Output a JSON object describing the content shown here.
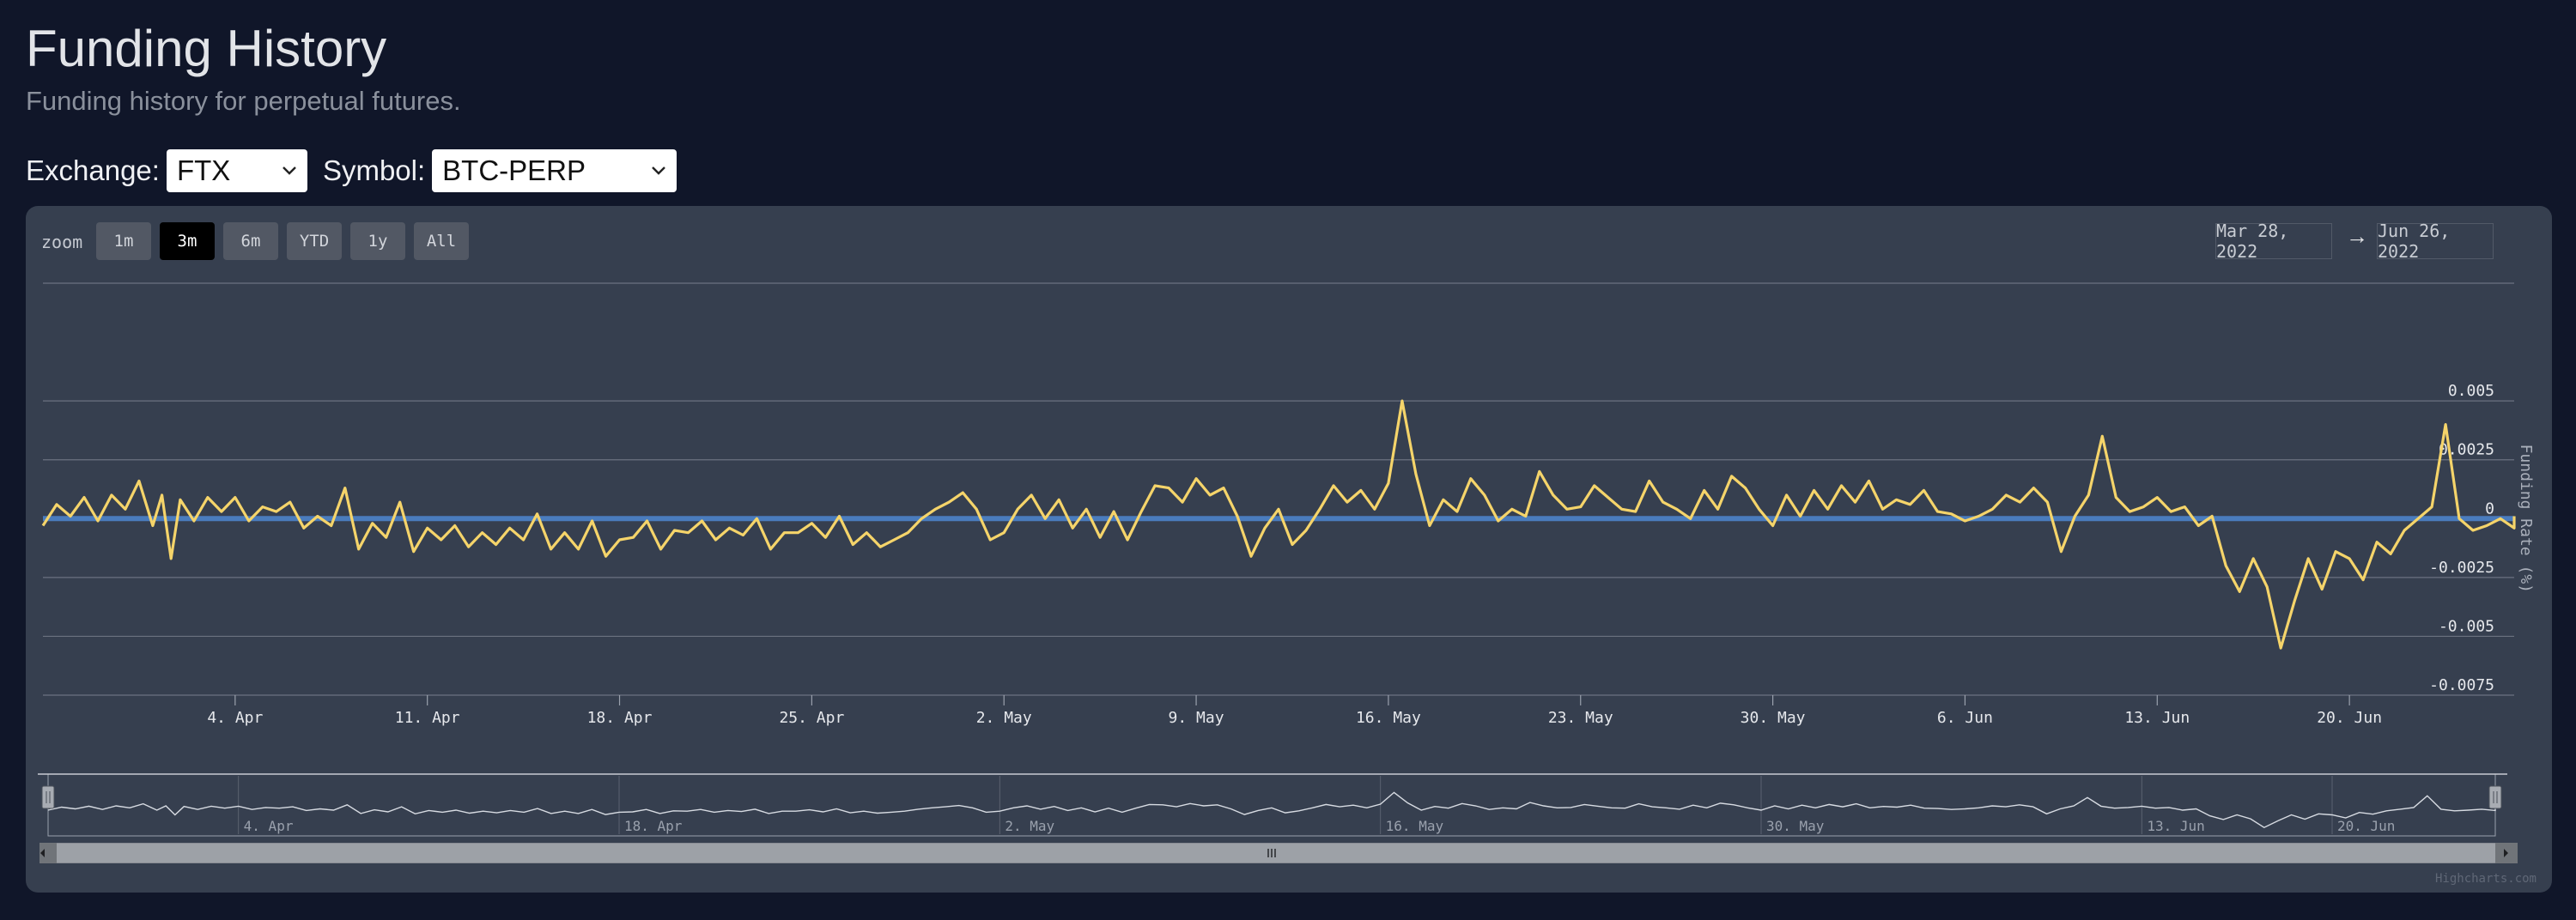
{
  "page": {
    "title": "Funding History",
    "subtitle": "Funding history for perpetual futures."
  },
  "filters": {
    "exchange_label": "Exchange:",
    "exchange_value": "FTX",
    "symbol_label": "Symbol:",
    "symbol_value": "BTC-PERP"
  },
  "range_selector": {
    "zoom_label": "zoom",
    "buttons": [
      "1m",
      "3m",
      "6m",
      "YTD",
      "1y",
      "All"
    ],
    "active": "3m",
    "from": "Mar 28, 2022",
    "to": "Jun 26, 2022",
    "arrow": "→"
  },
  "credits": "Highcharts.com",
  "colors": {
    "series": "#f5d46a",
    "zero_line": "#4a7cbd",
    "panel_bg": "#363f4f",
    "page_bg": "#101629"
  },
  "chart_data": {
    "type": "line",
    "title": "",
    "xlabel": "",
    "ylabel": "Funding Rate (%)",
    "x_start": "2022-03-28",
    "x_end": "2022-06-26",
    "xlim": [
      "2022-03-28",
      "2022-06-26"
    ],
    "ylim": [
      -0.0075,
      0.0075
    ],
    "y_ticks": [
      {
        "value": 0.005,
        "label": "0.005"
      },
      {
        "value": 0.0025,
        "label": "0.0025"
      },
      {
        "value": 0,
        "label": "0"
      },
      {
        "value": -0.0025,
        "label": "-0.0025"
      },
      {
        "value": -0.005,
        "label": "-0.005"
      },
      {
        "value": -0.0075,
        "label": "-0.0075"
      }
    ],
    "x_ticks": [
      {
        "date": "2022-04-04",
        "label": "4. Apr"
      },
      {
        "date": "2022-04-11",
        "label": "11. Apr"
      },
      {
        "date": "2022-04-18",
        "label": "18. Apr"
      },
      {
        "date": "2022-04-25",
        "label": "25. Apr"
      },
      {
        "date": "2022-05-02",
        "label": "2. May"
      },
      {
        "date": "2022-05-09",
        "label": "9. May"
      },
      {
        "date": "2022-05-16",
        "label": "16. May"
      },
      {
        "date": "2022-05-23",
        "label": "23. May"
      },
      {
        "date": "2022-05-30",
        "label": "30. May"
      },
      {
        "date": "2022-06-06",
        "label": "6. Jun"
      },
      {
        "date": "2022-06-13",
        "label": "13. Jun"
      },
      {
        "date": "2022-06-20",
        "label": "20. Jun"
      }
    ],
    "navigator_ticks": [
      {
        "date": "2022-04-04",
        "label": "4. Apr"
      },
      {
        "date": "2022-04-18",
        "label": "18. Apr"
      },
      {
        "date": "2022-05-02",
        "label": "2. May"
      },
      {
        "date": "2022-05-16",
        "label": "16. May"
      },
      {
        "date": "2022-05-30",
        "label": "30. May"
      },
      {
        "date": "2022-06-13",
        "label": "13. Jun"
      },
      {
        "date": "2022-06-20",
        "label": "20. Jun"
      }
    ],
    "grid": true,
    "legend": "none",
    "series": [
      {
        "points": [
          [
            "2022-03-28",
            -0.0003
          ],
          [
            "2022-03-28",
            0.0006
          ],
          [
            "2022-03-29",
            0.0001
          ],
          [
            "2022-03-29",
            0.0009
          ],
          [
            "2022-03-30",
            -0.0001
          ],
          [
            "2022-03-30",
            0.001
          ],
          [
            "2022-03-31",
            0.0004
          ],
          [
            "2022-03-31",
            0.0016
          ],
          [
            "2022-04-01",
            -0.0003
          ],
          [
            "2022-04-01",
            0.001
          ],
          [
            "2022-04-01",
            -0.0017
          ],
          [
            "2022-04-02",
            0.0008
          ],
          [
            "2022-04-02",
            -0.0001
          ],
          [
            "2022-04-03",
            0.0009
          ],
          [
            "2022-04-03",
            0.0003
          ],
          [
            "2022-04-04",
            0.0009
          ],
          [
            "2022-04-04",
            -0.0001
          ],
          [
            "2022-04-05",
            0.0005
          ],
          [
            "2022-04-05",
            0.0003
          ],
          [
            "2022-04-06",
            0.0007
          ],
          [
            "2022-04-06",
            -0.0004
          ],
          [
            "2022-04-07",
            0.0001
          ],
          [
            "2022-04-07",
            -0.0003
          ],
          [
            "2022-04-08",
            0.0013
          ],
          [
            "2022-04-08",
            -0.0013
          ],
          [
            "2022-04-09",
            -0.0002
          ],
          [
            "2022-04-09",
            -0.0008
          ],
          [
            "2022-04-10",
            0.0007
          ],
          [
            "2022-04-10",
            -0.0014
          ],
          [
            "2022-04-11",
            -0.0004
          ],
          [
            "2022-04-11",
            -0.0009
          ],
          [
            "2022-04-12",
            -0.0003
          ],
          [
            "2022-04-12",
            -0.0012
          ],
          [
            "2022-04-13",
            -0.0006
          ],
          [
            "2022-04-13",
            -0.0011
          ],
          [
            "2022-04-14",
            -0.0004
          ],
          [
            "2022-04-14",
            -0.0009
          ],
          [
            "2022-04-15",
            0.0002
          ],
          [
            "2022-04-15",
            -0.0013
          ],
          [
            "2022-04-16",
            -0.0006
          ],
          [
            "2022-04-16",
            -0.0013
          ],
          [
            "2022-04-17",
            -0.0001
          ],
          [
            "2022-04-17",
            -0.0016
          ],
          [
            "2022-04-18",
            -0.0009
          ],
          [
            "2022-04-18",
            -0.0008
          ],
          [
            "2022-04-19",
            -0.0001
          ],
          [
            "2022-04-19",
            -0.0013
          ],
          [
            "2022-04-20",
            -0.0005
          ],
          [
            "2022-04-20",
            -0.0006
          ],
          [
            "2022-04-21",
            -0.0001
          ],
          [
            "2022-04-21",
            -0.0009
          ],
          [
            "2022-04-22",
            -0.0004
          ],
          [
            "2022-04-22",
            -0.0007
          ],
          [
            "2022-04-23",
            0.0
          ],
          [
            "2022-04-23",
            -0.0013
          ],
          [
            "2022-04-24",
            -0.0006
          ],
          [
            "2022-04-24",
            -0.0006
          ],
          [
            "2022-04-25",
            -0.0002
          ],
          [
            "2022-04-25",
            -0.0008
          ],
          [
            "2022-04-26",
            0.0001
          ],
          [
            "2022-04-26",
            -0.0011
          ],
          [
            "2022-04-27",
            -0.0006
          ],
          [
            "2022-04-27",
            -0.0012
          ],
          [
            "2022-04-28",
            -0.0009
          ],
          [
            "2022-04-28",
            -0.0006
          ],
          [
            "2022-04-29",
            0.0
          ],
          [
            "2022-04-29",
            0.0004
          ],
          [
            "2022-04-30",
            0.0007
          ],
          [
            "2022-04-30",
            0.0011
          ],
          [
            "2022-05-01",
            0.0004
          ],
          [
            "2022-05-01",
            -0.0009
          ],
          [
            "2022-05-02",
            -0.0006
          ],
          [
            "2022-05-02",
            0.0004
          ],
          [
            "2022-05-03",
            0.001
          ],
          [
            "2022-05-03",
            0.0
          ],
          [
            "2022-05-04",
            0.0008
          ],
          [
            "2022-05-04",
            -0.0004
          ],
          [
            "2022-05-05",
            0.0004
          ],
          [
            "2022-05-05",
            -0.0008
          ],
          [
            "2022-05-06",
            0.0003
          ],
          [
            "2022-05-06",
            -0.0009
          ],
          [
            "2022-05-07",
            0.0003
          ],
          [
            "2022-05-07",
            0.0014
          ],
          [
            "2022-05-08",
            0.0013
          ],
          [
            "2022-05-08",
            0.0007
          ],
          [
            "2022-05-09",
            0.0017
          ],
          [
            "2022-05-09",
            0.001
          ],
          [
            "2022-05-10",
            0.0013
          ],
          [
            "2022-05-10",
            0.0001
          ],
          [
            "2022-05-11",
            -0.0016
          ],
          [
            "2022-05-11",
            -0.0004
          ],
          [
            "2022-05-12",
            0.0004
          ],
          [
            "2022-05-12",
            -0.0011
          ],
          [
            "2022-05-13",
            -0.0005
          ],
          [
            "2022-05-13",
            0.0004
          ],
          [
            "2022-05-14",
            0.0014
          ],
          [
            "2022-05-14",
            0.0007
          ],
          [
            "2022-05-15",
            0.0012
          ],
          [
            "2022-05-15",
            0.0004
          ],
          [
            "2022-05-16",
            0.0015
          ],
          [
            "2022-05-16",
            0.005
          ],
          [
            "2022-05-17",
            0.0019
          ],
          [
            "2022-05-17",
            -0.0003
          ],
          [
            "2022-05-18",
            0.0008
          ],
          [
            "2022-05-18",
            0.0003
          ],
          [
            "2022-05-19",
            0.0017
          ],
          [
            "2022-05-19",
            0.001
          ],
          [
            "2022-05-20",
            -0.0001
          ],
          [
            "2022-05-20",
            0.0004
          ],
          [
            "2022-05-21",
            0.0001
          ],
          [
            "2022-05-21",
            0.002
          ],
          [
            "2022-05-22",
            0.001
          ],
          [
            "2022-05-22",
            0.0004
          ],
          [
            "2022-05-23",
            0.0005
          ],
          [
            "2022-05-23",
            0.0014
          ],
          [
            "2022-05-24",
            0.0009
          ],
          [
            "2022-05-24",
            0.0004
          ],
          [
            "2022-05-25",
            0.0003
          ],
          [
            "2022-05-25",
            0.0016
          ],
          [
            "2022-05-26",
            0.0007
          ],
          [
            "2022-05-26",
            0.0004
          ],
          [
            "2022-05-27",
            0.0
          ],
          [
            "2022-05-27",
            0.0012
          ],
          [
            "2022-05-28",
            0.0004
          ],
          [
            "2022-05-28",
            0.0018
          ],
          [
            "2022-05-29",
            0.0013
          ],
          [
            "2022-05-29",
            0.0004
          ],
          [
            "2022-05-30",
            -0.0003
          ],
          [
            "2022-05-30",
            0.001
          ],
          [
            "2022-05-31",
            0.0001
          ],
          [
            "2022-05-31",
            0.0012
          ],
          [
            "2022-06-01",
            0.0004
          ],
          [
            "2022-06-01",
            0.0014
          ],
          [
            "2022-06-02",
            0.0007
          ],
          [
            "2022-06-02",
            0.0016
          ],
          [
            "2022-06-03",
            0.0004
          ],
          [
            "2022-06-03",
            0.0008
          ],
          [
            "2022-06-04",
            0.0006
          ],
          [
            "2022-06-04",
            0.0012
          ],
          [
            "2022-06-05",
            0.0003
          ],
          [
            "2022-06-05",
            0.0002
          ],
          [
            "2022-06-06",
            -0.0001
          ],
          [
            "2022-06-06",
            0.0001
          ],
          [
            "2022-06-07",
            0.0004
          ],
          [
            "2022-06-07",
            0.001
          ],
          [
            "2022-06-08",
            0.0007
          ],
          [
            "2022-06-08",
            0.0013
          ],
          [
            "2022-06-09",
            0.0007
          ],
          [
            "2022-06-09",
            -0.0014
          ],
          [
            "2022-06-10",
            0.0001
          ],
          [
            "2022-06-10",
            0.001
          ],
          [
            "2022-06-11",
            0.0035
          ],
          [
            "2022-06-11",
            0.0009
          ],
          [
            "2022-06-12",
            0.0003
          ],
          [
            "2022-06-12",
            0.0005
          ],
          [
            "2022-06-13",
            0.0009
          ],
          [
            "2022-06-13",
            0.0003
          ],
          [
            "2022-06-14",
            0.0005
          ],
          [
            "2022-06-14",
            -0.0003
          ],
          [
            "2022-06-15",
            0.0001
          ],
          [
            "2022-06-15",
            -0.002
          ],
          [
            "2022-06-16",
            -0.0031
          ],
          [
            "2022-06-16",
            -0.0017
          ],
          [
            "2022-06-17",
            -0.0029
          ],
          [
            "2022-06-17",
            -0.0055
          ],
          [
            "2022-06-18",
            -0.0035
          ],
          [
            "2022-06-18",
            -0.0017
          ],
          [
            "2022-06-19",
            -0.003
          ],
          [
            "2022-06-19",
            -0.0014
          ],
          [
            "2022-06-20",
            -0.0017
          ],
          [
            "2022-06-20",
            -0.0026
          ],
          [
            "2022-06-21",
            -0.001
          ],
          [
            "2022-06-21",
            -0.0015
          ],
          [
            "2022-06-22",
            -0.0005
          ],
          [
            "2022-06-22",
            0.0
          ],
          [
            "2022-06-23",
            0.0005
          ],
          [
            "2022-06-23",
            0.004
          ],
          [
            "2022-06-24",
            0.0
          ],
          [
            "2022-06-24",
            -0.0005
          ],
          [
            "2022-06-25",
            -0.0003
          ],
          [
            "2022-06-25",
            0.0
          ],
          [
            "2022-06-26",
            -0.0004
          ],
          [
            "2022-06-26",
            0.0001
          ]
        ]
      }
    ]
  }
}
